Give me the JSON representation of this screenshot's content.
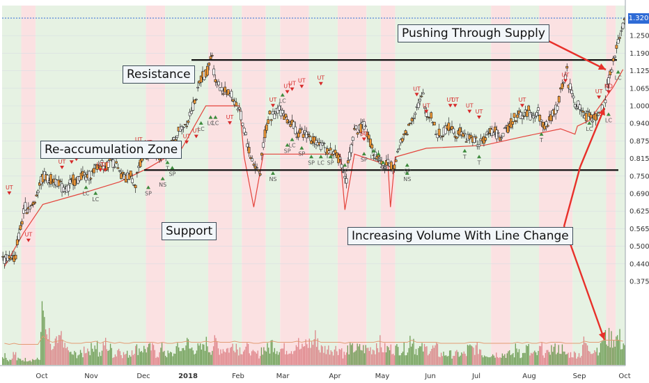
{
  "chart_data": {
    "type": "candlestick",
    "x_ticks": [
      "Oct",
      "Nov",
      "Dec",
      "2018",
      "Feb",
      "Mar",
      "Apr",
      "May",
      "Jun",
      "Jul",
      "Aug",
      "Sep",
      "Oct"
    ],
    "y_ticks": [
      "1.320",
      "1.250",
      "1.190",
      "1.125",
      "1.065",
      "1.000",
      "0.940",
      "0.875",
      "0.815",
      "0.750",
      "0.690",
      "0.625",
      "0.565",
      "0.500",
      "0.440",
      "0.375"
    ],
    "last_price": "1.320",
    "levels": {
      "resistance": 1.165,
      "support": 0.772
    },
    "close_path": [
      [
        0,
        0.455
      ],
      [
        2,
        0.47
      ],
      [
        4,
        0.62
      ],
      [
        6,
        0.66
      ],
      [
        8,
        0.74
      ],
      [
        10,
        0.745
      ],
      [
        12,
        0.705
      ],
      [
        14,
        0.73
      ],
      [
        16,
        0.75
      ],
      [
        18,
        0.755
      ],
      [
        20,
        0.8
      ],
      [
        22,
        0.795
      ],
      [
        24,
        0.77
      ],
      [
        25,
        0.745
      ],
      [
        27,
        0.74
      ],
      [
        29,
        0.82
      ],
      [
        31,
        0.835
      ],
      [
        33,
        0.815
      ],
      [
        35,
        0.87
      ],
      [
        37,
        0.93
      ],
      [
        39,
        0.98
      ],
      [
        41,
        1.1
      ],
      [
        43,
        1.16
      ],
      [
        45,
        1.06
      ],
      [
        47,
        1.05
      ],
      [
        49,
        0.98
      ],
      [
        51,
        0.84
      ],
      [
        53,
        0.775
      ],
      [
        55,
        0.96
      ],
      [
        57,
        0.99
      ],
      [
        59,
        0.95
      ],
      [
        61,
        0.91
      ],
      [
        63,
        0.9
      ],
      [
        65,
        0.87
      ],
      [
        67,
        0.85
      ],
      [
        69,
        0.84
      ],
      [
        71,
        0.76
      ],
      [
        73,
        0.9
      ],
      [
        75,
        0.92
      ],
      [
        77,
        0.83
      ],
      [
        79,
        0.79
      ],
      [
        81,
        0.8
      ],
      [
        83,
        0.88
      ],
      [
        85,
        0.96
      ],
      [
        87,
        1.02
      ],
      [
        89,
        0.95
      ],
      [
        91,
        0.9
      ],
      [
        93,
        0.93
      ],
      [
        95,
        0.9
      ],
      [
        97,
        0.88
      ],
      [
        99,
        0.87
      ],
      [
        101,
        0.9
      ],
      [
        103,
        0.9
      ],
      [
        105,
        0.93
      ],
      [
        107,
        0.96
      ],
      [
        109,
        0.97
      ],
      [
        111,
        0.97
      ],
      [
        113,
        0.94
      ],
      [
        115,
        1.0
      ],
      [
        117,
        1.1
      ],
      [
        119,
        1.02
      ],
      [
        121,
        0.98
      ],
      [
        123,
        0.96
      ],
      [
        125,
        1.0
      ],
      [
        126,
        1.1
      ],
      [
        128,
        1.22
      ],
      [
        129,
        1.3
      ]
    ],
    "stop_line": [
      [
        0,
        0.43
      ],
      [
        4,
        0.55
      ],
      [
        8,
        0.65
      ],
      [
        16,
        0.69
      ],
      [
        24,
        0.73
      ],
      [
        30,
        0.78
      ],
      [
        37,
        0.85
      ],
      [
        42,
        1.0
      ],
      [
        49,
        1.0
      ],
      [
        50,
        0.82
      ],
      [
        52,
        0.64
      ],
      [
        54,
        0.83
      ],
      [
        70,
        0.83
      ],
      [
        71,
        0.63
      ],
      [
        73,
        0.83
      ],
      [
        80,
        0.79
      ],
      [
        80.5,
        0.64
      ],
      [
        81.5,
        0.82
      ],
      [
        88,
        0.85
      ],
      [
        100,
        0.86
      ],
      [
        108,
        0.89
      ],
      [
        116,
        0.92
      ],
      [
        119,
        0.9
      ],
      [
        119.5,
        0.93
      ],
      [
        122,
        0.95
      ],
      [
        125,
        1.02
      ],
      [
        127,
        1.07
      ],
      [
        129,
        1.13
      ]
    ],
    "volume": [
      2,
      1,
      2,
      1,
      1,
      1,
      1,
      1,
      9,
      5,
      3,
      4,
      5,
      3,
      2,
      2,
      2,
      3,
      3,
      4,
      2,
      4,
      3,
      2,
      3,
      2,
      2,
      3,
      3,
      3,
      3,
      3,
      2,
      3,
      2,
      2,
      3,
      3,
      4,
      3,
      3,
      3,
      4,
      3,
      4,
      3,
      3,
      3,
      4,
      3,
      3,
      3,
      2,
      2,
      3,
      3,
      4,
      3,
      3,
      3,
      3,
      4,
      3,
      4,
      4,
      5,
      3,
      3,
      3,
      3,
      3,
      2,
      3,
      3,
      3,
      3,
      3,
      3,
      4,
      3,
      3,
      3,
      3,
      3,
      3,
      5,
      3,
      3,
      3,
      3,
      3,
      2,
      2,
      2,
      2,
      2,
      2,
      3,
      3,
      3,
      2,
      2,
      2,
      2,
      2,
      2,
      2,
      3,
      2,
      3,
      2,
      2,
      3,
      2,
      3,
      3,
      3,
      2,
      2,
      2,
      2,
      4,
      3,
      3,
      3,
      5,
      5,
      5,
      5,
      4
    ],
    "bands": [
      [
        "g",
        0,
        4
      ],
      [
        "r",
        4,
        7
      ],
      [
        "g",
        7,
        30
      ],
      [
        "r",
        30,
        34
      ],
      [
        "g",
        34,
        43
      ],
      [
        "r",
        43,
        48
      ],
      [
        "g",
        48,
        50
      ],
      [
        "r",
        50,
        55
      ],
      [
        "g",
        55,
        58
      ],
      [
        "r",
        58,
        64
      ],
      [
        "g",
        64,
        70
      ],
      [
        "r",
        70,
        76
      ],
      [
        "g",
        76,
        79
      ],
      [
        "r",
        79,
        82
      ],
      [
        "g",
        82,
        102
      ],
      [
        "r",
        102,
        106
      ],
      [
        "g",
        106,
        112
      ],
      [
        "r",
        112,
        119
      ],
      [
        "g",
        119,
        126
      ],
      [
        "r",
        126,
        128
      ],
      [
        "g",
        128,
        130
      ]
    ],
    "signals": [
      {
        "t": "UT",
        "i": 1,
        "p": 0.68
      },
      {
        "t": "UT",
        "i": 5,
        "p": 0.51
      },
      {
        "t": "UT",
        "i": 12,
        "p": 0.77
      },
      {
        "t": "UT",
        "i": 14,
        "p": 0.79
      },
      {
        "t": "UT",
        "i": 15,
        "p": 0.8
      },
      {
        "t": "UT",
        "i": 20,
        "p": 0.76
      },
      {
        "t": "UT",
        "i": 21,
        "p": 0.76
      },
      {
        "t": "UT",
        "i": 28,
        "p": 0.85
      },
      {
        "t": "UT",
        "i": 30,
        "p": 0.84
      },
      {
        "t": "UT",
        "i": 32,
        "p": 0.83
      },
      {
        "t": "UT",
        "i": 38,
        "p": 0.86
      },
      {
        "t": "UT",
        "i": 40,
        "p": 0.88
      },
      {
        "t": "UT",
        "i": 47,
        "p": 0.93
      },
      {
        "t": "UT",
        "i": 56,
        "p": 0.99
      },
      {
        "t": "UT",
        "i": 59,
        "p": 1.04
      },
      {
        "t": "UT",
        "i": 60,
        "p": 1.05
      },
      {
        "t": "UT",
        "i": 62,
        "p": 1.06
      },
      {
        "t": "UT",
        "i": 66,
        "p": 1.07
      },
      {
        "t": "UT",
        "i": 86,
        "p": 1.03
      },
      {
        "t": "UT",
        "i": 88,
        "p": 0.97
      },
      {
        "t": "UT",
        "i": 93,
        "p": 0.99
      },
      {
        "t": "UT",
        "i": 94,
        "p": 0.99
      },
      {
        "t": "UT",
        "i": 97,
        "p": 0.97
      },
      {
        "t": "UT",
        "i": 99,
        "p": 0.95
      },
      {
        "t": "UT",
        "i": 108,
        "p": 0.99
      },
      {
        "t": "UT",
        "i": 117,
        "p": 1.08
      },
      {
        "t": "UT",
        "i": 124,
        "p": 1.02
      },
      {
        "t": "LC",
        "i": 17,
        "p": 0.72
      },
      {
        "t": "LC",
        "i": 19,
        "p": 0.7
      },
      {
        "t": "LC",
        "i": 41,
        "p": 0.95
      },
      {
        "t": "LC",
        "i": 43,
        "p": 0.97
      },
      {
        "t": "LC",
        "i": 44,
        "p": 0.97
      },
      {
        "t": "LC",
        "i": 58,
        "p": 1.05
      },
      {
        "t": "LC",
        "i": 60,
        "p": 0.89
      },
      {
        "t": "LC",
        "i": 66,
        "p": 0.83
      },
      {
        "t": "LC",
        "i": 77,
        "p": 0.85
      },
      {
        "t": "LC",
        "i": 122,
        "p": 0.95
      },
      {
        "t": "LC",
        "i": 126,
        "p": 0.98
      },
      {
        "t": "LC",
        "i": 128,
        "p": 1.13
      },
      {
        "t": "SP",
        "i": 30,
        "p": 0.72
      },
      {
        "t": "SP",
        "i": 35,
        "p": 0.79
      },
      {
        "t": "SP",
        "i": 59,
        "p": 0.87
      },
      {
        "t": "SP",
        "i": 62,
        "p": 0.86
      },
      {
        "t": "SP",
        "i": 64,
        "p": 0.83
      },
      {
        "t": "SP",
        "i": 68,
        "p": 0.83
      },
      {
        "t": "SP",
        "i": 71,
        "p": 0.8
      },
      {
        "t": "SP",
        "i": 75,
        "p": 0.84
      },
      {
        "t": "SP",
        "i": 79,
        "p": 0.81
      },
      {
        "t": "SP",
        "i": 84,
        "p": 0.8
      },
      {
        "t": "T",
        "i": 34,
        "p": 0.81
      },
      {
        "t": "T",
        "i": 96,
        "p": 0.85
      },
      {
        "t": "T",
        "i": 99,
        "p": 0.83
      },
      {
        "t": "T",
        "i": 112,
        "p": 0.91
      },
      {
        "t": "NS",
        "i": 33,
        "p": 0.75
      },
      {
        "t": "NS",
        "i": 56,
        "p": 0.77
      },
      {
        "t": "NS",
        "i": 78,
        "p": 0.84
      },
      {
        "t": "NS",
        "i": 84,
        "p": 0.77
      },
      {
        "t": "SO",
        "i": 75,
        "p": 0.87
      },
      {
        "t": "ND",
        "i": 126,
        "p": 1.04
      }
    ]
  },
  "annotations": {
    "pushing": "Pushing Through Supply",
    "resistance": "Resistance",
    "reaccumulation": "Re-accumulation Zone",
    "support": "Support",
    "increasing": "Increasing Volume With Line Change"
  }
}
